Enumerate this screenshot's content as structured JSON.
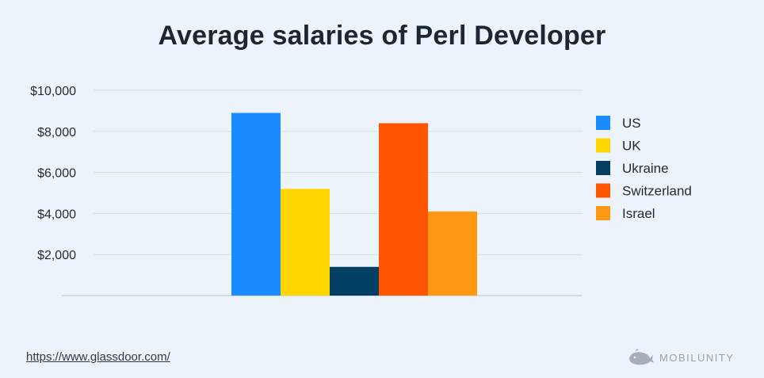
{
  "title": "Average salaries of Perl  Developer",
  "source": "https://www.glassdoor.com/",
  "brand": {
    "name": "MOBILUNITY",
    "icon": "whale-logo-icon"
  },
  "colors": {
    "background": "#edf3fa",
    "grid": "#d6dee8",
    "axis": "#b9c3ce"
  },
  "chart_data": {
    "type": "bar",
    "title": "Average salaries of Perl  Developer",
    "xlabel": "",
    "ylabel": "",
    "ylim": [
      0,
      10000
    ],
    "yticks": [
      2000,
      4000,
      6000,
      8000,
      10000
    ],
    "ytick_labels": [
      "$2,000",
      "$4,000",
      "$6,000",
      "$8,000",
      "$10,000"
    ],
    "grid": true,
    "legend_position": "right",
    "series": [
      {
        "name": "US",
        "value": 8900,
        "color": "#1a8cff"
      },
      {
        "name": "UK",
        "value": 5200,
        "color": "#ffd600"
      },
      {
        "name": "Ukraine",
        "value": 1400,
        "color": "#033f63"
      },
      {
        "name": "Switzerland",
        "value": 8400,
        "color": "#ff5400"
      },
      {
        "name": "Israel",
        "value": 4100,
        "color": "#ff9914"
      }
    ]
  }
}
